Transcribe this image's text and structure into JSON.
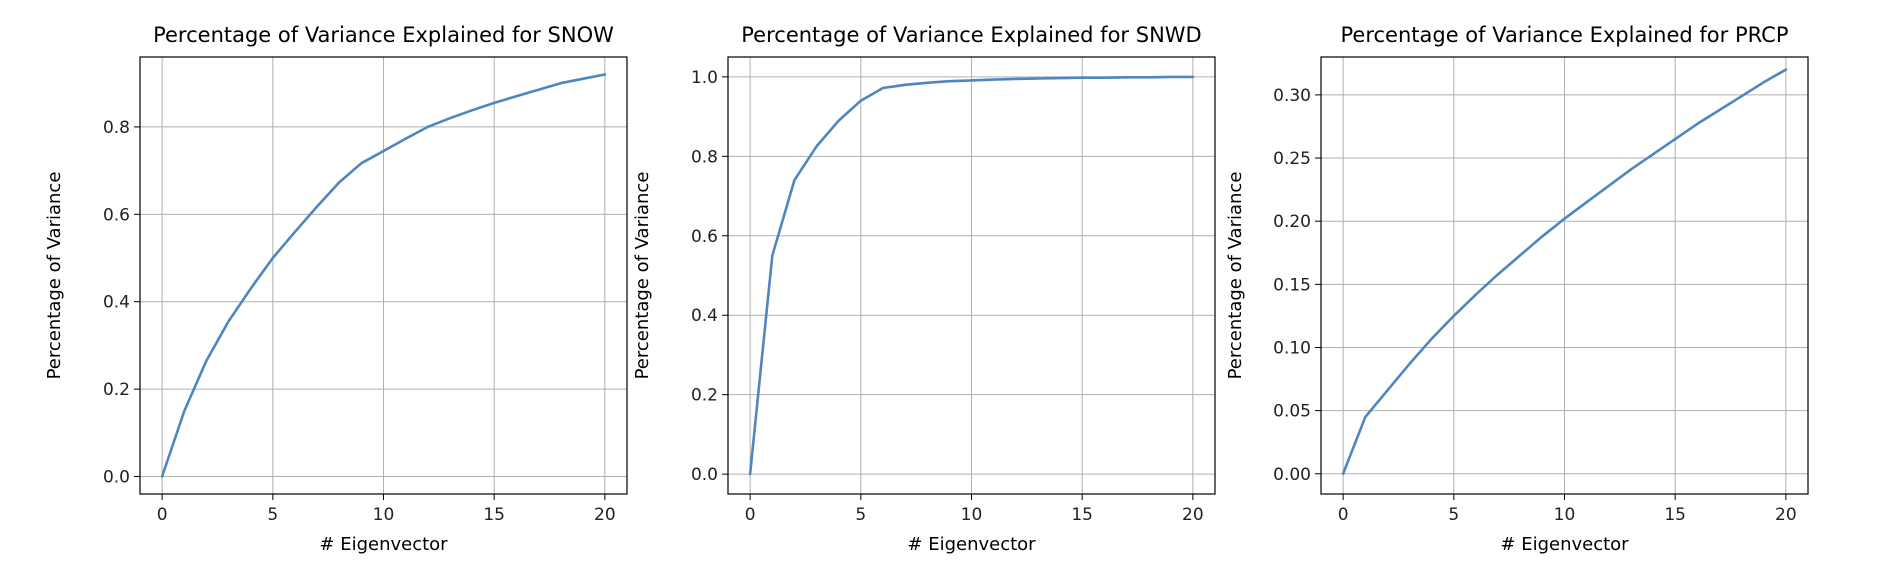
{
  "chart_data": [
    {
      "type": "line",
      "title": "Percentage of Variance Explained for SNOW",
      "xlabel": "# Eigenvector",
      "ylabel": "Percentage of Variance",
      "xlim": [
        -1,
        21
      ],
      "ylim": [
        -0.04,
        0.96
      ],
      "xticks": [
        0,
        5,
        10,
        15,
        20
      ],
      "xtick_labels": [
        "0",
        "5",
        "10",
        "15",
        "20"
      ],
      "yticks": [
        0.0,
        0.2,
        0.4,
        0.6,
        0.8
      ],
      "ytick_labels": [
        "0.0",
        "0.2",
        "0.4",
        "0.6",
        "0.8"
      ],
      "grid": true,
      "color": "#4f86c0",
      "x": [
        0,
        1,
        2,
        3,
        4,
        5,
        6,
        7,
        8,
        9,
        10,
        11,
        12,
        13,
        14,
        15,
        16,
        17,
        18,
        19,
        20
      ],
      "y": [
        0.0,
        0.15,
        0.265,
        0.355,
        0.43,
        0.5,
        0.56,
        0.618,
        0.673,
        0.717,
        0.745,
        0.773,
        0.8,
        0.82,
        0.838,
        0.855,
        0.87,
        0.885,
        0.9,
        0.91,
        0.92
      ]
    },
    {
      "type": "line",
      "title": "Percentage of Variance Explained for SNWD",
      "xlabel": "# Eigenvector",
      "ylabel": "Percentage of Variance",
      "xlim": [
        -1,
        21
      ],
      "ylim": [
        -0.05,
        1.05
      ],
      "xticks": [
        0,
        5,
        10,
        15,
        20
      ],
      "xtick_labels": [
        "0",
        "5",
        "10",
        "15",
        "20"
      ],
      "yticks": [
        0.0,
        0.2,
        0.4,
        0.6,
        0.8,
        1.0
      ],
      "ytick_labels": [
        "0.0",
        "0.2",
        "0.4",
        "0.6",
        "0.8",
        "1.0"
      ],
      "grid": true,
      "color": "#4f86c0",
      "x": [
        0,
        1,
        2,
        3,
        4,
        5,
        6,
        7,
        8,
        9,
        10,
        11,
        12,
        13,
        14,
        15,
        16,
        17,
        18,
        19,
        20
      ],
      "y": [
        0.0,
        0.55,
        0.74,
        0.825,
        0.89,
        0.94,
        0.972,
        0.98,
        0.985,
        0.989,
        0.991,
        0.993,
        0.995,
        0.996,
        0.997,
        0.998,
        0.998,
        0.999,
        0.999,
        1.0,
        1.0
      ]
    },
    {
      "type": "line",
      "title": "Percentage of Variance Explained for PRCP",
      "xlabel": "# Eigenvector",
      "ylabel": "Percentage of Variance",
      "xlim": [
        -1,
        21
      ],
      "ylim": [
        -0.016,
        0.33
      ],
      "xticks": [
        0,
        5,
        10,
        15,
        20
      ],
      "xtick_labels": [
        "0",
        "5",
        "10",
        "15",
        "20"
      ],
      "yticks": [
        0.0,
        0.05,
        0.1,
        0.15,
        0.2,
        0.25,
        0.3
      ],
      "ytick_labels": [
        "0.00",
        "0.05",
        "0.10",
        "0.15",
        "0.20",
        "0.25",
        "0.30"
      ],
      "grid": true,
      "color": "#4f86c0",
      "x": [
        0,
        1,
        2,
        3,
        4,
        5,
        6,
        7,
        8,
        9,
        10,
        11,
        12,
        13,
        14,
        15,
        16,
        17,
        18,
        19,
        20
      ],
      "y": [
        0.0,
        0.045,
        0.066,
        0.087,
        0.107,
        0.125,
        0.142,
        0.158,
        0.173,
        0.188,
        0.202,
        0.215,
        0.228,
        0.241,
        0.253,
        0.265,
        0.277,
        0.288,
        0.299,
        0.31,
        0.32
      ]
    }
  ]
}
